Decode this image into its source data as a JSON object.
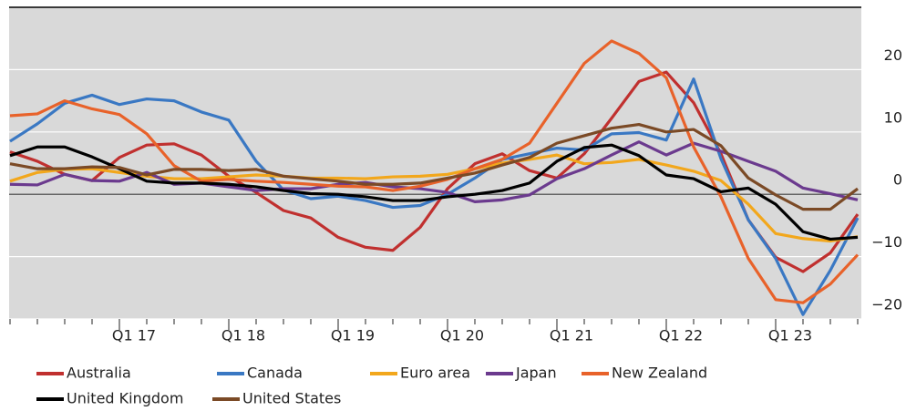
{
  "chart_data": {
    "type": "line",
    "categories": [
      null,
      null,
      null,
      null,
      "Q1 17",
      null,
      null,
      null,
      "Q1 18",
      null,
      null,
      null,
      "Q1 19",
      null,
      null,
      null,
      "Q1 20",
      null,
      null,
      null,
      "Q1 21",
      null,
      null,
      null,
      "Q1 22",
      null,
      null,
      null,
      "Q1 23",
      null,
      null,
      null
    ],
    "ylim": [
      -20,
      30
    ],
    "yticks": [
      {
        "value": -20,
        "label": "−20"
      },
      {
        "value": -10,
        "label": "−10"
      },
      0,
      10,
      20
    ],
    "grid": true,
    "series": [
      {
        "name": "Australia",
        "color": "#c0302f",
        "values": [
          6.8,
          5.3,
          3.2,
          2.2,
          5.9,
          7.9,
          8.1,
          6.3,
          2.9,
          0.3,
          -2.6,
          -3.8,
          -6.9,
          -8.5,
          -9.0,
          -5.3,
          0.9,
          4.9,
          6.5,
          3.8,
          2.6,
          6.5,
          12.2,
          18.1,
          19.6,
          14.7,
          6.5,
          -4.1,
          -10.1,
          -12.4,
          -9.4,
          -3.2
        ]
      },
      {
        "name": "Canada",
        "color": "#3a78c3",
        "values": [
          8.5,
          11.3,
          14.6,
          15.9,
          14.4,
          15.3,
          15.0,
          13.2,
          11.9,
          5.3,
          0.7,
          -0.7,
          -0.3,
          -1.0,
          -2.1,
          -1.8,
          0,
          2.6,
          5.6,
          6.5,
          7.4,
          7.1,
          9.7,
          9.9,
          8.7,
          18.5,
          5.7,
          -4.1,
          -10.3,
          -19.3,
          -12.2,
          -3.8
        ]
      },
      {
        "name": "Euro area",
        "color": "#f2a71c",
        "values": [
          2.1,
          3.5,
          4.0,
          4.1,
          3.5,
          2.9,
          2.5,
          2.5,
          2.8,
          3.1,
          2.9,
          2.6,
          2.6,
          2.5,
          2.8,
          2.9,
          3.2,
          4.1,
          5.0,
          5.6,
          6.3,
          4.9,
          5.1,
          5.6,
          4.7,
          3.7,
          2.2,
          -1.6,
          -6.3,
          -7.1,
          -7.5,
          -6.8
        ]
      },
      {
        "name": "Japan",
        "color": "#6b3a8e",
        "values": [
          1.6,
          1.5,
          3.2,
          2.2,
          2.1,
          3.5,
          1.6,
          1.8,
          1.2,
          0.6,
          0.9,
          0.9,
          1.6,
          1.9,
          1.2,
          0.9,
          0.3,
          -1.2,
          -0.9,
          -0.1,
          2.5,
          4.1,
          6.3,
          8.4,
          6.3,
          8.2,
          6.9,
          5.3,
          3.7,
          1.0,
          0.1,
          -0.9
        ]
      },
      {
        "name": "New Zealand",
        "color": "#e8622a",
        "values": [
          12.6,
          12.9,
          15.0,
          13.7,
          12.8,
          9.7,
          4.6,
          2.1,
          2.4,
          2.1,
          1.9,
          1.6,
          1.3,
          1.2,
          0.6,
          1.3,
          2.4,
          4.1,
          5.6,
          8.2,
          14.6,
          21.0,
          24.6,
          22.6,
          18.7,
          7.6,
          -0.4,
          -10.3,
          -16.9,
          -17.4,
          -14.4,
          -9.7
        ]
      },
      {
        "name": "United Kingdom",
        "color": "#000000",
        "values": [
          6.2,
          7.6,
          7.6,
          6.0,
          4.1,
          2.1,
          1.8,
          1.8,
          1.6,
          1.2,
          0.6,
          0.1,
          0,
          -0.4,
          -1.0,
          -1.0,
          -0.4,
          0,
          0.6,
          1.8,
          5.3,
          7.5,
          7.9,
          6.2,
          3.1,
          2.5,
          0.4,
          1.0,
          -1.6,
          -6.0,
          -7.2,
          -6.9
        ]
      },
      {
        "name": "United States",
        "color": "#7b4a26",
        "values": [
          4.9,
          4.1,
          4.1,
          4.4,
          4.3,
          3.1,
          4.0,
          4.0,
          3.8,
          4.0,
          2.9,
          2.5,
          2.1,
          1.6,
          1.6,
          1.8,
          2.6,
          3.4,
          4.7,
          5.9,
          8.2,
          9.4,
          10.6,
          11.2,
          10.0,
          10.4,
          7.8,
          2.6,
          -0.1,
          -2.4,
          -2.4,
          0.9
        ]
      }
    ]
  }
}
